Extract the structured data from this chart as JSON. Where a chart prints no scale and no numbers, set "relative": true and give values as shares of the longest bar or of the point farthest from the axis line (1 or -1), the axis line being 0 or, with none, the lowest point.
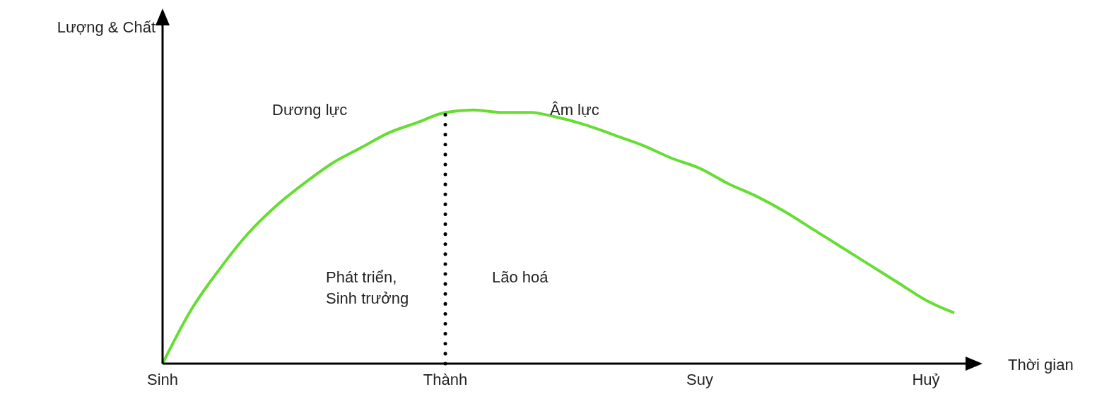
{
  "chart_data": {
    "type": "line",
    "relative": true,
    "xlabel": "Thời gian",
    "ylabel": "Lượng & Chất",
    "categories": [
      "Sinh",
      null,
      null,
      null,
      null,
      null,
      null,
      null,
      null,
      null,
      "Thành",
      null,
      null,
      null,
      null,
      null,
      null,
      null,
      null,
      "Suy",
      null,
      null,
      null,
      null,
      null,
      null,
      null,
      "Huỷ",
      null
    ],
    "series": [
      {
        "color": "#66dd33",
        "values": [
          0,
          0.21,
          0.37,
          0.51,
          0.62,
          0.71,
          0.79,
          0.85,
          0.91,
          0.95,
          0.99,
          1,
          0.99,
          0.99,
          0.97,
          0.94,
          0.9,
          0.86,
          0.81,
          0.77,
          0.71,
          0.66,
          0.6,
          0.53,
          0.46,
          0.39,
          0.32,
          0.25,
          0.2
        ]
      }
    ],
    "ref_lines": [
      {
        "axis": "x",
        "value": "Thành",
        "line_style": "dotted",
        "color": "#000000"
      }
    ],
    "annotations": [
      "Dương lực",
      "Âm lực",
      "Phát triển,\nSinh trưởng",
      "Lão hoá"
    ],
    "grid": false,
    "legend": false,
    "marker": "none",
    "line_style": "solid"
  }
}
